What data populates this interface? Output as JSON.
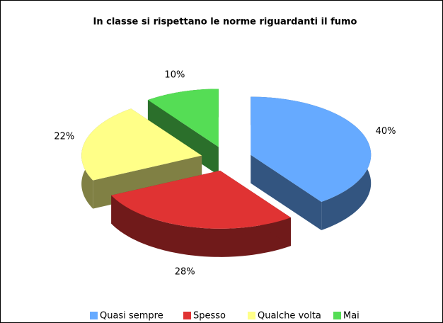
{
  "chart_data": {
    "type": "pie",
    "title": "In classe si rispettano le norme riguardanti il fumo",
    "categories": [
      "Quasi sempre",
      "Spesso",
      "Qualche volta",
      "Mai"
    ],
    "values": [
      40,
      28,
      22,
      10
    ],
    "value_labels": [
      "40%",
      "28%",
      "22%",
      "10%"
    ],
    "colors": [
      "#66aaff",
      "#e03333",
      "#ffff88",
      "#55dd55"
    ],
    "legend": "bottom"
  }
}
